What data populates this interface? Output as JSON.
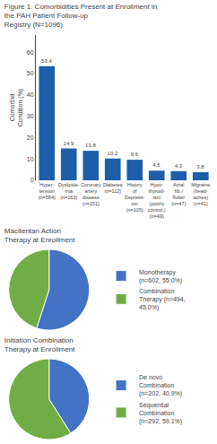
{
  "chart_data": [
    {
      "type": "bar",
      "title": "Figure 1. Comorbidities Present at Enrollment in the PAH Patient Follow-up\nRegistry (N=1096)",
      "categories": [
        "Hyper-\ntension\n(n=584)",
        "Dyslipide-\nmia\n(n=163)",
        "Coronary\nartery\ndisease\n(n=151)",
        "Diabetes\n(n=112)",
        "History\nof\nDepress-\nion\n(n=105)",
        "Hypo-\nthyroid-\nism\n(poorly\ncontrol.)\n(n=49)",
        "Atrial\nfib./\nflutter\n(n=47)",
        "Migraine\n(head-\naches)\n(n=41)"
      ],
      "values": [
        53.4,
        14.9,
        13.8,
        10.2,
        9.6,
        4.5,
        4.3,
        3.8
      ],
      "color": "#1c5fa8",
      "ylabel": "Comorbid\nCondition (%)",
      "ylim": [
        0,
        68
      ],
      "yticks": [
        0,
        10,
        20,
        30,
        40,
        50,
        60
      ],
      "grid": false,
      "data_labels": true
    },
    {
      "type": "pie",
      "title": "Macitentan Action\nTherapy at Enrollment",
      "categories": [
        "Monotherapy\n(n=602, 55.0%)",
        "Combination\nTherapy (n=494,\n45.0%)"
      ],
      "values": [
        55,
        45
      ],
      "colors": [
        "#4472c4",
        "#70ad47"
      ],
      "legend": "right"
    },
    {
      "type": "pie",
      "title": "Initiation Combination\nTherapy at Enrollment",
      "categories": [
        "De novo\nCombination\n(n=202, 40.9%)",
        "Sequential\nCombination\n(n=292, 59.1%)"
      ],
      "values": [
        41,
        59
      ],
      "colors": [
        "#4472c4",
        "#70ad47"
      ],
      "legend": "right"
    }
  ]
}
